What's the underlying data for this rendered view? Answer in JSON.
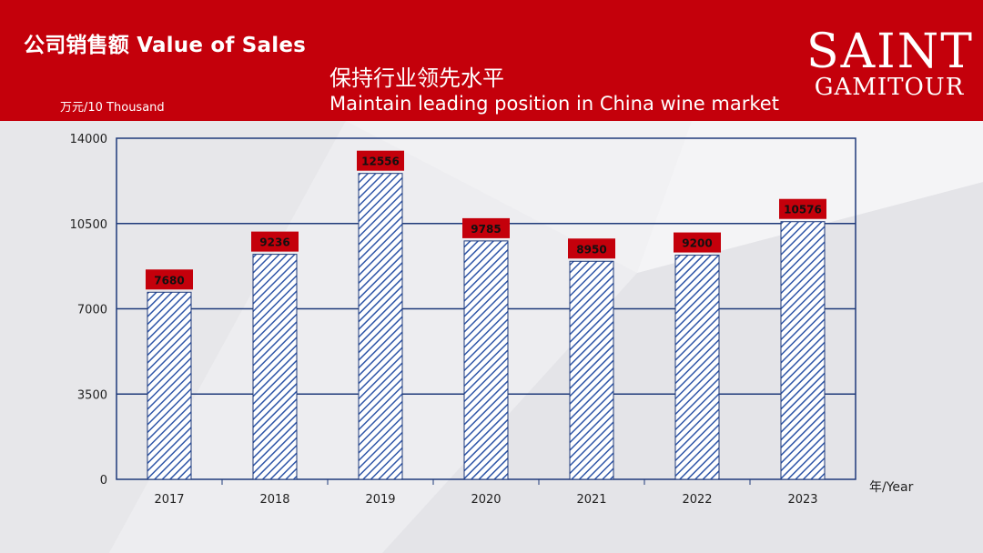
{
  "header": {
    "title": "公司销售额 Value of Sales",
    "unit": "万元/10 Thousand",
    "subtitle_cn": "保持行业领先水平",
    "subtitle_en": "Maintain leading position in China wine market",
    "logo_top": "SAINT",
    "logo_bottom": "GAMITOUR"
  },
  "colors": {
    "brand_red": "#c4000b",
    "bar_fill": "#ffffff",
    "bar_hatch": "#2f56a8",
    "axis": "#1f3a7a",
    "label_box": "#c4000b"
  },
  "chart_data": {
    "type": "bar",
    "categories": [
      "2017",
      "2018",
      "2019",
      "2020",
      "2021",
      "2022",
      "2023"
    ],
    "values": [
      7680,
      9236,
      12556,
      9785,
      8950,
      9200,
      10576
    ],
    "data_labels": [
      "7680",
      "9236",
      "12556",
      "9785",
      "8950",
      "9200",
      "10576"
    ],
    "yticks": [
      0,
      3500,
      7000,
      10500,
      14000
    ],
    "ylim": [
      0,
      14000
    ],
    "xlabel": "年/Year",
    "grid": true
  }
}
